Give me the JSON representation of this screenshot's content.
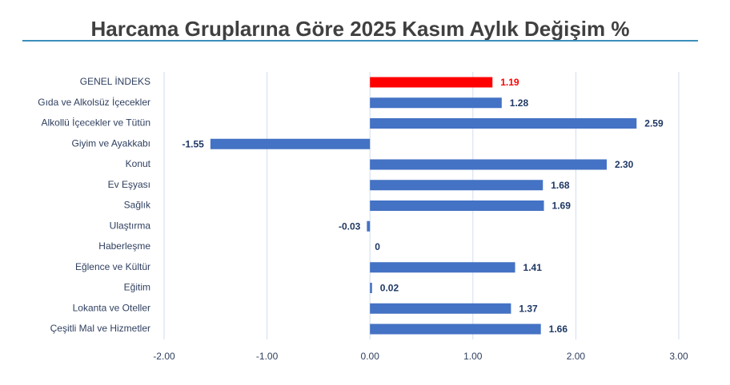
{
  "chart_data": {
    "type": "bar",
    "orientation": "horizontal",
    "title": "Harcama Gruplarına Göre 2025 Kasım Aylık Değişim %",
    "categories": [
      "GENEL İNDEKS",
      "Gıda ve Alkolsüz İçecekler",
      "Alkollü İçecekler ve Tütün",
      "Giyim ve Ayakkabı",
      "Konut",
      "Ev Eşyası",
      "Sağlık",
      "Ulaştırma",
      "Haberleşme",
      "Eğlence ve Kültür",
      "Eğitim",
      "Lokanta ve Oteller",
      "Çeşitli Mal ve Hizmetler"
    ],
    "values": [
      1.19,
      1.28,
      2.59,
      -1.55,
      2.3,
      1.68,
      1.69,
      -0.03,
      0,
      1.41,
      0.02,
      1.37,
      1.66
    ],
    "value_labels": [
      "1.19",
      "1.28",
      "2.59",
      "-1.55",
      "2.30",
      "1.68",
      "1.69",
      "-0.03",
      "0",
      "1.41",
      "0.02",
      "1.37",
      "1.66"
    ],
    "colors": [
      "#ff0000",
      "#4472c4",
      "#4472c4",
      "#4472c4",
      "#4472c4",
      "#4472c4",
      "#4472c4",
      "#4472c4",
      "#4472c4",
      "#4472c4",
      "#4472c4",
      "#4472c4",
      "#4472c4"
    ],
    "xlim": [
      -2,
      3
    ],
    "xticks": [
      {
        "value": -2,
        "label": "-2.00"
      },
      {
        "value": -1,
        "label": "-1.00"
      },
      {
        "value": 0,
        "label": "0.00"
      },
      {
        "value": 1,
        "label": "1.00"
      },
      {
        "value": 2,
        "label": "2.00"
      },
      {
        "value": 3,
        "label": "3.00"
      }
    ],
    "grid": true
  }
}
